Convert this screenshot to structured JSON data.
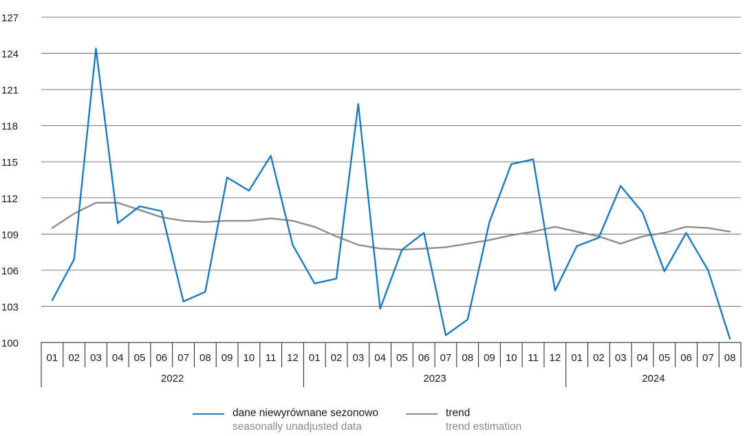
{
  "chart_data": {
    "type": "line",
    "y_ticks": [
      "127",
      "124",
      "121",
      "118",
      "115",
      "112",
      "109",
      "106",
      "103",
      "100"
    ],
    "ylim": [
      100,
      127
    ],
    "y_step": 3,
    "grid": true,
    "months": [
      "01",
      "02",
      "03",
      "04",
      "05",
      "06",
      "07",
      "08",
      "09",
      "10",
      "11",
      "12",
      "01",
      "02",
      "03",
      "04",
      "05",
      "06",
      "07",
      "08",
      "09",
      "10",
      "11",
      "12",
      "01",
      "02",
      "03",
      "04",
      "05",
      "06",
      "07",
      "08"
    ],
    "years": [
      {
        "label": "2022",
        "months": 12
      },
      {
        "label": "2023",
        "months": 12
      },
      {
        "label": "2024",
        "months": 8
      }
    ],
    "series": [
      {
        "name": "dane niewyrównane sezonowo",
        "name_en": "seasonally unadjusted data",
        "color": "#1a7abf",
        "values": [
          103.5,
          106.9,
          124.4,
          109.9,
          111.3,
          110.9,
          103.4,
          104.2,
          113.7,
          112.6,
          115.5,
          108.1,
          104.9,
          105.3,
          119.8,
          102.8,
          107.7,
          109.1,
          100.6,
          101.9,
          110.0,
          114.8,
          115.2,
          104.3,
          108.0,
          108.7,
          113.0,
          110.8,
          105.9,
          109.1,
          106.0,
          100.3
        ]
      },
      {
        "name": "trend",
        "name_en": "trend estimation",
        "color": "#8c8c8c",
        "values": [
          109.5,
          110.7,
          111.6,
          111.6,
          111.0,
          110.4,
          110.1,
          110.0,
          110.1,
          110.1,
          110.3,
          110.1,
          109.6,
          108.8,
          108.1,
          107.8,
          107.7,
          107.8,
          107.9,
          108.2,
          108.5,
          108.9,
          109.2,
          109.6,
          109.2,
          108.8,
          108.2,
          108.8,
          109.1,
          109.6,
          109.5,
          109.2
        ]
      }
    ]
  }
}
